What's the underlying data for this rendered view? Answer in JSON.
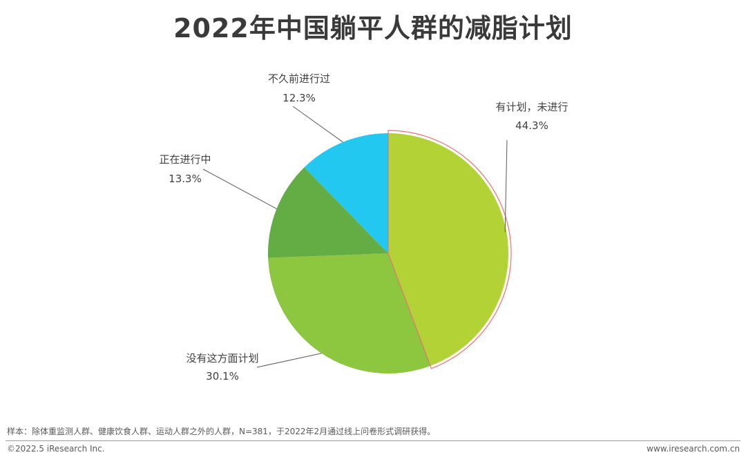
{
  "chart_data": {
    "type": "pie",
    "title": "2022年中国躺平人群的减脂计划",
    "slices": [
      {
        "label": "有计划，未进行",
        "value": 44.3,
        "value_label": "44.3%",
        "color": "#B2D235",
        "highlighted": true
      },
      {
        "label": "没有这方面计划",
        "value": 30.1,
        "value_label": "30.1%",
        "color": "#8DC63F"
      },
      {
        "label": "正在进行中",
        "value": 13.3,
        "value_label": "13.3%",
        "color": "#63AD44"
      },
      {
        "label": "不久前进行过",
        "value": 12.3,
        "value_label": "12.3%",
        "color": "#22C8F0"
      }
    ],
    "start": "12 o'clock",
    "direction": "clockwise",
    "highlight_color": "#E57373"
  },
  "footer": {
    "note": "样本：除体重监测人群、健康饮食人群、运动人群之外的人群，N=381，于2022年2月通过线上问卷形式调研获得。",
    "copyright": "©2022.5 iResearch Inc.",
    "website": "www.iresearch.com.cn"
  }
}
